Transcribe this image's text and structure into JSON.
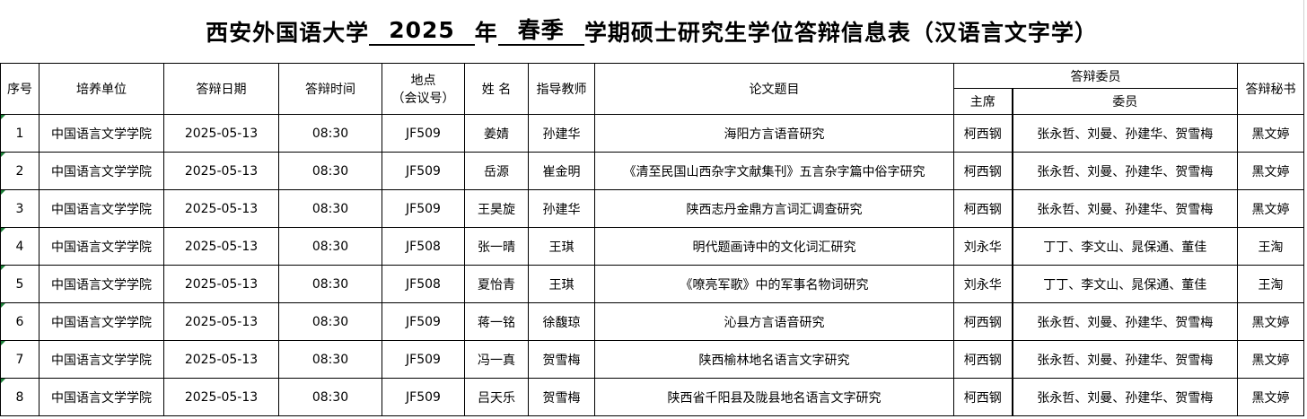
{
  "title": {
    "prefix": "西安外国语大学",
    "year": "2025",
    "year_suffix": "年",
    "term": "春季",
    "suffix": "学期硕士研究生学位答辩信息表（汉语言文字学）"
  },
  "headers": {
    "no": "序号",
    "unit": "培养单位",
    "date": "答辩日期",
    "time": "答辩时间",
    "place_line1": "地点",
    "place_line2": "（会议号）",
    "name": "姓 名",
    "advisor": "指导教师",
    "topic": "论文题目",
    "committee": "答辩委员",
    "chair": "主席",
    "members": "委员",
    "secretary": "答辩秘书"
  },
  "rows": [
    {
      "no": "1",
      "unit": "中国语言文学学院",
      "date": "2025-05-13",
      "time": "08:30",
      "place": "JF509",
      "name": "姜婧",
      "advisor": "孙建华",
      "topic": "海阳方言语音研究",
      "chair": "柯西钢",
      "members": "张永哲、刘曼、孙建华、贺雪梅",
      "secretary": "黑文婷"
    },
    {
      "no": "2",
      "unit": "中国语言文学学院",
      "date": "2025-05-13",
      "time": "08:30",
      "place": "JF509",
      "name": "岳源",
      "advisor": "崔金明",
      "topic": "《清至民国山西杂字文献集刊》五言杂字篇中俗字研究",
      "chair": "柯西钢",
      "members": "张永哲、刘曼、孙建华、贺雪梅",
      "secretary": "黑文婷"
    },
    {
      "no": "3",
      "unit": "中国语言文学学院",
      "date": "2025-05-13",
      "time": "08:30",
      "place": "JF509",
      "name": "王昊旋",
      "advisor": "孙建华",
      "topic": "陕西志丹金鼎方言词汇调查研究",
      "chair": "柯西钢",
      "members": "张永哲、刘曼、孙建华、贺雪梅",
      "secretary": "黑文婷"
    },
    {
      "no": "4",
      "unit": "中国语言文学学院",
      "date": "2025-05-13",
      "time": "08:30",
      "place": "JF508",
      "name": "张一晴",
      "advisor": "王琪",
      "topic": "明代题画诗中的文化词汇研究",
      "chair": "刘永华",
      "members": "丁丁、李文山、晁保通、董佳",
      "secretary": "王淘"
    },
    {
      "no": "5",
      "unit": "中国语言文学学院",
      "date": "2025-05-13",
      "time": "08:30",
      "place": "JF508",
      "name": "夏怡青",
      "advisor": "王琪",
      "topic": "《嘹亮军歌》中的军事名物词研究",
      "chair": "刘永华",
      "members": "丁丁、李文山、晁保通、董佳",
      "secretary": "王淘"
    },
    {
      "no": "6",
      "unit": "中国语言文学学院",
      "date": "2025-05-13",
      "time": "08:30",
      "place": "JF509",
      "name": "蒋一铭",
      "advisor": "徐馥琼",
      "topic": "沁县方言语音研究",
      "chair": "柯西钢",
      "members": "张永哲、刘曼、孙建华、贺雪梅",
      "secretary": "黑文婷"
    },
    {
      "no": "7",
      "unit": "中国语言文学学院",
      "date": "2025-05-13",
      "time": "08:30",
      "place": "JF509",
      "name": "冯一真",
      "advisor": "贺雪梅",
      "topic": "陕西榆林地名语言文字研究",
      "chair": "柯西钢",
      "members": "张永哲、刘曼、孙建华、贺雪梅",
      "secretary": "黑文婷"
    },
    {
      "no": "8",
      "unit": "中国语言文学学院",
      "date": "2025-05-13",
      "time": "08:30",
      "place": "JF509",
      "name": "吕天乐",
      "advisor": "贺雪梅",
      "topic": "陕西省千阳县及陇县地名语言文字研究",
      "chair": "柯西钢",
      "members": "张永哲、刘曼、孙建华、贺雪梅",
      "secretary": "黑文婷"
    }
  ]
}
